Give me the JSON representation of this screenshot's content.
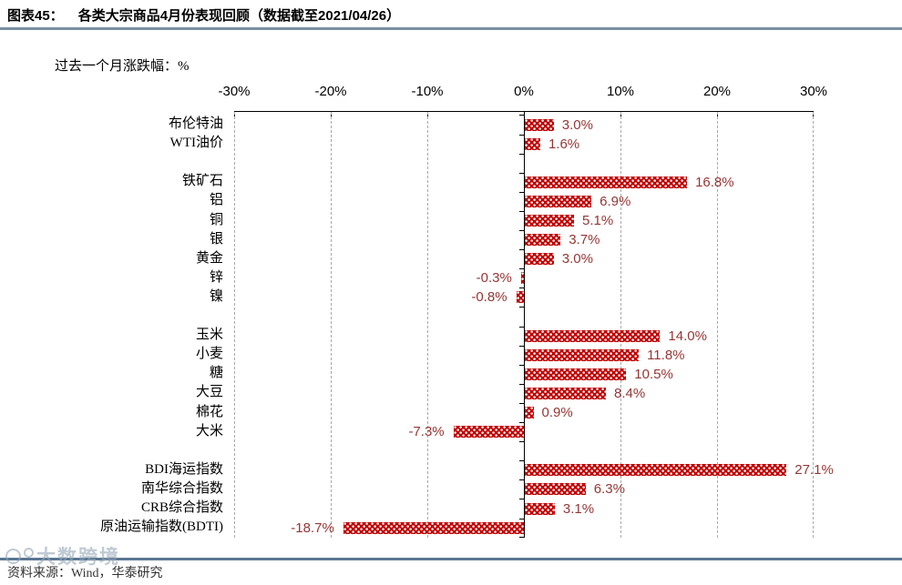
{
  "header": {
    "title_prefix": "图表45：",
    "title": "各类大宗商品4月份表现回顾（数据截至2021/04/26）"
  },
  "chart_data": {
    "type": "bar",
    "orientation": "horizontal",
    "subtitle": "过去一个月涨跌幅：%",
    "unit": "%",
    "xlim": [
      -30,
      30
    ],
    "ticks": [
      -30,
      -20,
      -10,
      0,
      10,
      20,
      30
    ],
    "grid": "dashed-vertical",
    "legend": "none",
    "bar_color": "#c00000",
    "value_label_color": "#963634",
    "groups": [
      {
        "name": "oil",
        "items": [
          {
            "label": "布伦特油",
            "value": 3.0
          },
          {
            "label": "WTI油价",
            "value": 1.6
          }
        ]
      },
      {
        "name": "metals",
        "items": [
          {
            "label": "铁矿石",
            "value": 16.8
          },
          {
            "label": "铝",
            "value": 6.9
          },
          {
            "label": "铜",
            "value": 5.1
          },
          {
            "label": "银",
            "value": 3.7
          },
          {
            "label": "黄金",
            "value": 3.0
          },
          {
            "label": "锌",
            "value": -0.3
          },
          {
            "label": "镍",
            "value": -0.8
          }
        ]
      },
      {
        "name": "agriculture",
        "items": [
          {
            "label": "玉米",
            "value": 14.0
          },
          {
            "label": "小麦",
            "value": 11.8
          },
          {
            "label": "糖",
            "value": 10.5
          },
          {
            "label": "大豆",
            "value": 8.4
          },
          {
            "label": "棉花",
            "value": 0.9
          },
          {
            "label": "大米",
            "value": -7.3
          }
        ]
      },
      {
        "name": "indices",
        "items": [
          {
            "label": "BDI海运指数",
            "value": 27.1
          },
          {
            "label": "南华综合指数",
            "value": 6.3
          },
          {
            "label": "CRB综合指数",
            "value": 3.1
          },
          {
            "label": "原油运输指数(BDTI)",
            "value": -18.7
          }
        ]
      }
    ]
  },
  "footer": {
    "source": "资料来源：Wind，华泰研究",
    "watermark": "大数跨境"
  }
}
